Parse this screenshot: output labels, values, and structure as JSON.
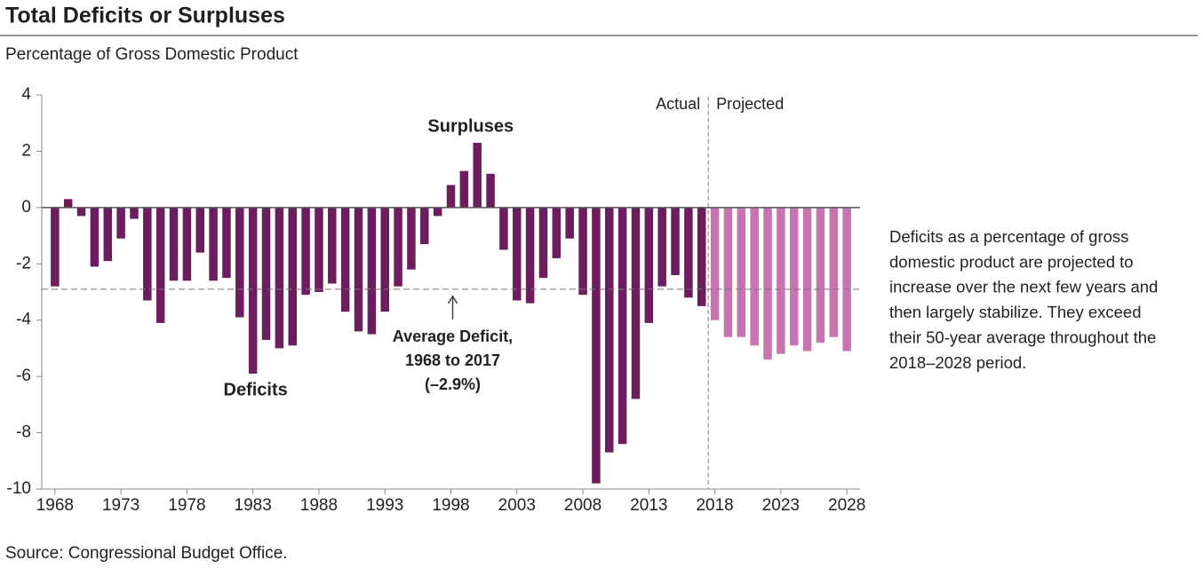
{
  "chart_data": {
    "type": "bar",
    "title": "Total Deficits or Surpluses",
    "subtitle": "Percentage of Gross Domestic Product",
    "source": "Source: Congressional Budget Office.",
    "x": [
      1968,
      1969,
      1970,
      1971,
      1972,
      1973,
      1974,
      1975,
      1976,
      1977,
      1978,
      1979,
      1980,
      1981,
      1982,
      1983,
      1984,
      1985,
      1986,
      1987,
      1988,
      1989,
      1990,
      1991,
      1992,
      1993,
      1994,
      1995,
      1996,
      1997,
      1998,
      1999,
      2000,
      2001,
      2002,
      2003,
      2004,
      2005,
      2006,
      2007,
      2008,
      2009,
      2010,
      2011,
      2012,
      2013,
      2014,
      2015,
      2016,
      2017,
      2018,
      2019,
      2020,
      2021,
      2022,
      2023,
      2024,
      2025,
      2026,
      2027,
      2028
    ],
    "series": [
      {
        "name": "Actual",
        "color": "#6c1d5e",
        "values": [
          -2.8,
          0.3,
          -0.3,
          -2.1,
          -1.9,
          -1.1,
          -0.4,
          -3.3,
          -4.1,
          -2.6,
          -2.6,
          -1.6,
          -2.6,
          -2.5,
          -3.9,
          -5.9,
          -4.7,
          -5.0,
          -4.9,
          -3.1,
          -3.0,
          -2.7,
          -3.7,
          -4.4,
          -4.5,
          -3.7,
          -2.8,
          -2.2,
          -1.3,
          -0.3,
          0.8,
          1.3,
          2.3,
          1.2,
          -1.5,
          -3.3,
          -3.4,
          -2.5,
          -1.8,
          -1.1,
          -3.1,
          -9.8,
          -8.7,
          -8.4,
          -6.8,
          -4.1,
          -2.8,
          -2.4,
          -3.2,
          -3.5,
          null,
          null,
          null,
          null,
          null,
          null,
          null,
          null,
          null,
          null,
          null
        ]
      },
      {
        "name": "Projected",
        "color": "#c874b0",
        "values": [
          null,
          null,
          null,
          null,
          null,
          null,
          null,
          null,
          null,
          null,
          null,
          null,
          null,
          null,
          null,
          null,
          null,
          null,
          null,
          null,
          null,
          null,
          null,
          null,
          null,
          null,
          null,
          null,
          null,
          null,
          null,
          null,
          null,
          null,
          null,
          null,
          null,
          null,
          null,
          null,
          null,
          null,
          null,
          null,
          null,
          null,
          null,
          null,
          null,
          null,
          -4.0,
          -4.6,
          -4.6,
          -4.9,
          -5.4,
          -5.2,
          -4.9,
          -5.1,
          -4.8,
          -4.6,
          -5.1
        ]
      }
    ],
    "xlim": [
      1967,
      2029
    ],
    "xticks": [
      1968,
      1973,
      1978,
      1983,
      1988,
      1993,
      1998,
      2003,
      2008,
      2013,
      2018,
      2023,
      2028
    ],
    "ylim": [
      -10,
      4
    ],
    "yticks": [
      -10,
      -8,
      -6,
      -4,
      -2,
      0,
      2,
      4
    ],
    "average": {
      "value": -2.9,
      "label": [
        "Average Deficit,",
        "1968 to 2017",
        "(–2.9%)"
      ]
    },
    "annotations": {
      "surpluses": "Surpluses",
      "deficits": "Deficits"
    },
    "note": [
      "Deficits as a percentage of gross",
      "domestic product are projected to",
      "increase over the next few years and",
      "then largely stabilize. They exceed",
      "their 50-year average throughout the",
      "2018–2028 period."
    ]
  }
}
